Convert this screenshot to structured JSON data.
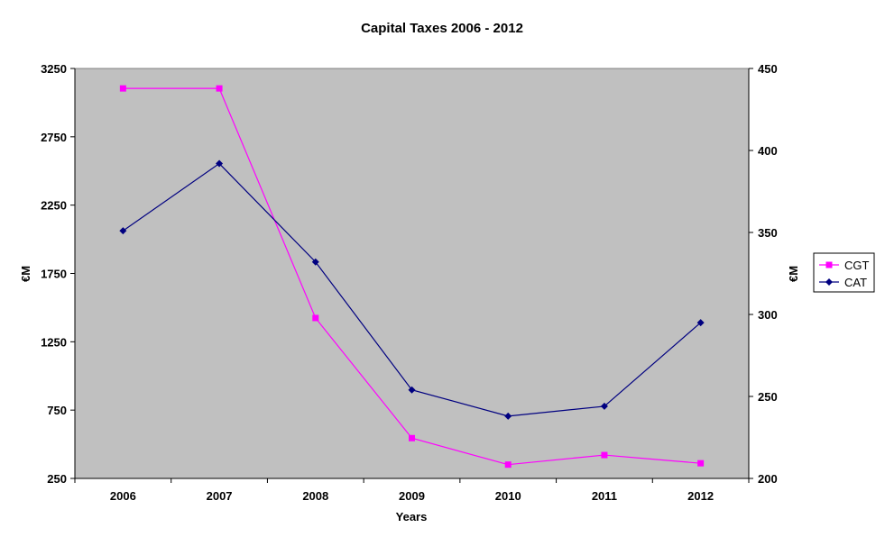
{
  "chart_data": {
    "type": "line",
    "title": "Capital Taxes 2006 - 2012",
    "xlabel": "Years",
    "ylabel": "€M",
    "y2label": "€M",
    "categories": [
      "2006",
      "2007",
      "2008",
      "2009",
      "2010",
      "2011",
      "2012"
    ],
    "ylim": [
      250,
      3250
    ],
    "yticks": [
      250,
      750,
      1250,
      1750,
      2250,
      2750,
      3250
    ],
    "y2lim": [
      200,
      450
    ],
    "y2ticks": [
      200,
      250,
      300,
      350,
      400,
      450
    ],
    "grid": false,
    "plot_background": "#c0c0c0",
    "legend_position": "right",
    "series": [
      {
        "name": "CGT",
        "axis": "left",
        "color": "#ff00ff",
        "marker": "square",
        "values": [
          3104,
          3104,
          1424,
          545,
          351,
          421,
          361
        ]
      },
      {
        "name": "CAT",
        "axis": "right",
        "color": "#000080",
        "marker": "diamond",
        "values": [
          351,
          392,
          332,
          254,
          238,
          244,
          295
        ]
      }
    ]
  }
}
